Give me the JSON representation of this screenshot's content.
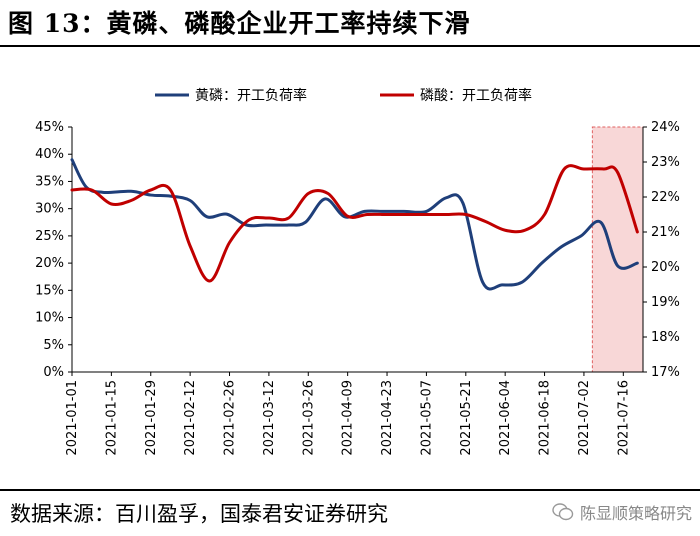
{
  "header": {
    "title": "图 13：黄磷、磷酸企业开工率持续下滑"
  },
  "footer": {
    "source": "数据来源：百川盈孚，国泰君安证券研究",
    "watermark": "陈显顺策略研究"
  },
  "colors": {
    "series1": "#1f3f7a",
    "series2": "#c00000",
    "highlight": "#f8d7d7"
  },
  "chart_data": {
    "type": "line",
    "title": "",
    "xlabel": "",
    "ylabel": "",
    "x_tick_labels": [
      "2021-01-01",
      "2021-01-15",
      "2021-01-29",
      "2021-02-12",
      "2021-02-26",
      "2021-03-12",
      "2021-03-26",
      "2021-04-09",
      "2021-04-23",
      "2021-05-07",
      "2021-05-21",
      "2021-06-04",
      "2021-06-18",
      "2021-07-02",
      "2021-07-16"
    ],
    "x_range": [
      "2021-01-01",
      "2021-07-23"
    ],
    "ylim_left": [
      0,
      45
    ],
    "ylim_right": [
      17,
      24
    ],
    "y_ticks_left": [
      "0%",
      "5%",
      "10%",
      "15%",
      "20%",
      "25%",
      "30%",
      "35%",
      "40%",
      "45%"
    ],
    "y_ticks_right": [
      "17%",
      "18%",
      "19%",
      "20%",
      "21%",
      "22%",
      "23%",
      "24%"
    ],
    "legend_position": "top",
    "highlight_range": [
      "2021-07-05",
      "2021-07-23"
    ],
    "series": [
      {
        "name": "黄磷：开工负荷率",
        "axis": "left",
        "points": [
          [
            "2021-01-01",
            39
          ],
          [
            "2021-01-06",
            34
          ],
          [
            "2021-01-12",
            33
          ],
          [
            "2021-01-22",
            33.2
          ],
          [
            "2021-01-29",
            32.5
          ],
          [
            "2021-02-05",
            32.3
          ],
          [
            "2021-02-12",
            31.5
          ],
          [
            "2021-02-18",
            28.5
          ],
          [
            "2021-02-25",
            29
          ],
          [
            "2021-03-04",
            27
          ],
          [
            "2021-03-11",
            27
          ],
          [
            "2021-03-19",
            27
          ],
          [
            "2021-03-25",
            27.5
          ],
          [
            "2021-04-01",
            31.8
          ],
          [
            "2021-04-08",
            28.5
          ],
          [
            "2021-04-15",
            29.5
          ],
          [
            "2021-04-22",
            29.5
          ],
          [
            "2021-04-29",
            29.5
          ],
          [
            "2021-05-07",
            29.5
          ],
          [
            "2021-05-14",
            32
          ],
          [
            "2021-05-20",
            31
          ],
          [
            "2021-05-27",
            16.5
          ],
          [
            "2021-06-03",
            16
          ],
          [
            "2021-06-10",
            16.5
          ],
          [
            "2021-06-17",
            20
          ],
          [
            "2021-06-24",
            23
          ],
          [
            "2021-07-01",
            25
          ],
          [
            "2021-07-08",
            27.5
          ],
          [
            "2021-07-14",
            19.5
          ],
          [
            "2021-07-21",
            20
          ]
        ]
      },
      {
        "name": "磷酸：开工负荷率",
        "axis": "right",
        "points": [
          [
            "2021-01-01",
            22.2
          ],
          [
            "2021-01-08",
            22.2
          ],
          [
            "2021-01-15",
            21.8
          ],
          [
            "2021-01-22",
            21.9
          ],
          [
            "2021-01-29",
            22.2
          ],
          [
            "2021-02-05",
            22.2
          ],
          [
            "2021-02-12",
            20.6
          ],
          [
            "2021-02-19",
            19.6
          ],
          [
            "2021-02-26",
            20.7
          ],
          [
            "2021-03-05",
            21.35
          ],
          [
            "2021-03-12",
            21.4
          ],
          [
            "2021-03-19",
            21.4
          ],
          [
            "2021-03-26",
            22.1
          ],
          [
            "2021-04-02",
            22.1
          ],
          [
            "2021-04-09",
            21.45
          ],
          [
            "2021-04-16",
            21.5
          ],
          [
            "2021-04-23",
            21.5
          ],
          [
            "2021-04-30",
            21.5
          ],
          [
            "2021-05-07",
            21.5
          ],
          [
            "2021-05-14",
            21.5
          ],
          [
            "2021-05-21",
            21.5
          ],
          [
            "2021-05-28",
            21.3
          ],
          [
            "2021-06-04",
            21.05
          ],
          [
            "2021-06-11",
            21.05
          ],
          [
            "2021-06-18",
            21.5
          ],
          [
            "2021-06-25",
            22.8
          ],
          [
            "2021-07-02",
            22.8
          ],
          [
            "2021-07-09",
            22.8
          ],
          [
            "2021-07-14",
            22.7
          ],
          [
            "2021-07-21",
            21
          ]
        ]
      }
    ]
  }
}
